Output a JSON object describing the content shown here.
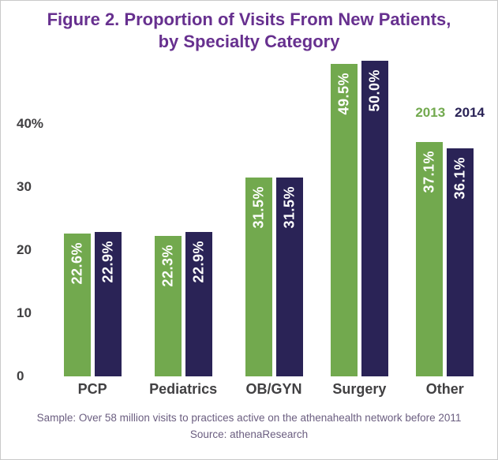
{
  "title": {
    "line1": "Figure 2. Proportion of Visits From New Patients,",
    "line2": "by Specialty Category"
  },
  "legend": {
    "series1": "2013",
    "series2": "2014"
  },
  "footer": {
    "line1": "Sample: Over 58 million visits to practices active on the athenahealth network before 2011",
    "line2": "Source: athenaResearch"
  },
  "colors": {
    "green": "#72A94E",
    "navy": "#2A2356",
    "title_purple": "#67308F",
    "axis_gray": "#414042",
    "footer_purple": "#6B5E80"
  },
  "chart_data": {
    "type": "bar",
    "title": "Figure 2. Proportion of Visits From New Patients, by Specialty Category",
    "categories": [
      "PCP",
      "Pediatrics",
      "OB/GYN",
      "Surgery",
      "Other"
    ],
    "series": [
      {
        "name": "2013",
        "color": "#72A94E",
        "values": [
          22.6,
          22.3,
          31.5,
          49.5,
          37.1
        ]
      },
      {
        "name": "2014",
        "color": "#2A2356",
        "values": [
          22.9,
          22.9,
          31.5,
          50.0,
          36.1
        ]
      }
    ],
    "value_label_format": "percent_one_decimal",
    "yticks": [
      {
        "value": 0,
        "label": "0"
      },
      {
        "value": 10,
        "label": "10"
      },
      {
        "value": 20,
        "label": "20"
      },
      {
        "value": 30,
        "label": "30"
      },
      {
        "value": 40,
        "label": "40%"
      }
    ],
    "ylim": [
      0,
      52
    ],
    "xlabel": "",
    "ylabel": "",
    "grid": false,
    "legend_position": "top-right"
  }
}
